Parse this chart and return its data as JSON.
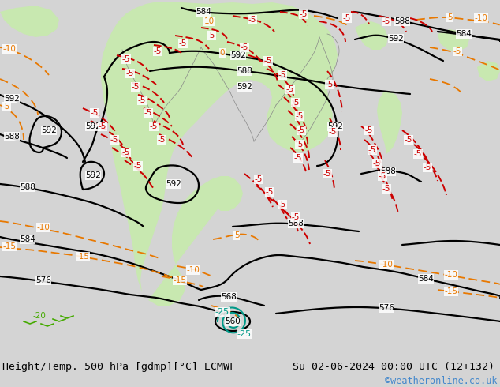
{
  "title_left": "Height/Temp. 500 hPa [gdmp][°C] ECMWF",
  "title_right": "Su 02-06-2024 00:00 UTC (12+132)",
  "watermark": "©weatheronline.co.uk",
  "bg_color": "#d4d4d4",
  "green_color": "#c8e8b0",
  "white_bg": "#ffffff",
  "figwidth": 6.34,
  "figheight": 4.9,
  "dpi": 100,
  "bottom_bar_color": "#ffffff",
  "title_fontsize": 9.5,
  "watermark_color": "#4488cc",
  "watermark_fontsize": 8.5,
  "black": "#000000",
  "orange": "#e87800",
  "red": "#cc0000",
  "teal": "#009988",
  "green_label": "#44aa00",
  "label_fontsize": 7.5,
  "contour_lw": 1.6
}
